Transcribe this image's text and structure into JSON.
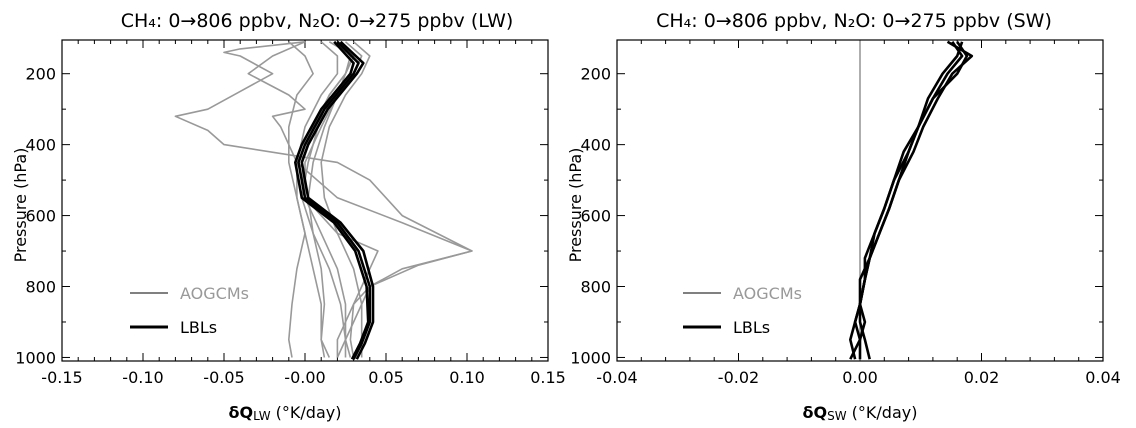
{
  "chart_data": [
    {
      "type": "line",
      "title": "CH₄: 0→806 ppbv, N₂O: 0→275 ppbv (LW)",
      "xlabel": "δQₗᵤ (°K/day)",
      "xlabel_main": "δQ",
      "xlabel_sub": "LW",
      "xlabel_unit": " (°K/day)",
      "ylabel": "Pressure (hPa)",
      "xlim": [
        -0.15,
        0.15
      ],
      "ylim": [
        1010,
        105
      ],
      "xticks": [
        "-0.15",
        "-0.10",
        "-0.05",
        "-0.00",
        "0.05",
        "0.10",
        "0.15"
      ],
      "yticks": [
        "200",
        "400",
        "600",
        "800",
        "1000"
      ],
      "legend": [
        {
          "label": "AOGCMs",
          "color": "#999999"
        },
        {
          "label": "LBLs",
          "color": "#000000"
        }
      ],
      "legend_position": "bottom-left",
      "series": [
        {
          "group": "AOGCMs",
          "color": "#999999",
          "points": [
            [
              -0.01,
              110
            ],
            [
              0.0,
              150
            ],
            [
              0.005,
              200
            ],
            [
              -0.005,
              260
            ],
            [
              -0.01,
              350
            ],
            [
              -0.01,
              450
            ],
            [
              -0.005,
              550
            ],
            [
              0.0,
              650
            ],
            [
              -0.005,
              750
            ],
            [
              -0.008,
              850
            ],
            [
              -0.01,
              950
            ],
            [
              -0.008,
              1000
            ]
          ]
        },
        {
          "group": "AOGCMs",
          "color": "#999999",
          "points": [
            [
              0.02,
              110
            ],
            [
              0.03,
              150
            ],
            [
              0.025,
              200
            ],
            [
              0.02,
              260
            ],
            [
              0.012,
              350
            ],
            [
              0.005,
              450
            ],
            [
              0.002,
              550
            ],
            [
              0.005,
              650
            ],
            [
              0.01,
              750
            ],
            [
              0.012,
              850
            ],
            [
              0.01,
              950
            ],
            [
              0.012,
              1000
            ]
          ]
        },
        {
          "group": "AOGCMs",
          "color": "#999999",
          "points": [
            [
              0.025,
              110
            ],
            [
              0.035,
              150
            ],
            [
              0.03,
              200
            ],
            [
              0.02,
              260
            ],
            [
              0.01,
              350
            ],
            [
              0.0,
              450
            ],
            [
              0.0,
              550
            ],
            [
              0.01,
              650
            ],
            [
              0.02,
              750
            ],
            [
              0.025,
              850
            ],
            [
              0.025,
              950
            ],
            [
              0.025,
              1000
            ]
          ]
        },
        {
          "group": "AOGCMs",
          "color": "#999999",
          "points": [
            [
              0.02,
              110
            ],
            [
              0.028,
              150
            ],
            [
              0.025,
              200
            ],
            [
              0.015,
              260
            ],
            [
              0.005,
              350
            ],
            [
              -0.002,
              450
            ],
            [
              0.0,
              550
            ],
            [
              0.02,
              650
            ],
            [
              0.045,
              700
            ],
            [
              0.04,
              750
            ],
            [
              0.035,
              800
            ],
            [
              0.03,
              850
            ],
            [
              0.028,
              950
            ],
            [
              0.03,
              1000
            ]
          ]
        },
        {
          "group": "AOGCMs",
          "color": "#999999",
          "points": [
            [
              0.03,
              110
            ],
            [
              0.04,
              150
            ],
            [
              0.035,
              200
            ],
            [
              0.025,
              260
            ],
            [
              0.015,
              350
            ],
            [
              0.01,
              450
            ],
            [
              0.012,
              550
            ],
            [
              0.02,
              650
            ],
            [
              0.03,
              750
            ],
            [
              0.035,
              850
            ],
            [
              0.035,
              950
            ],
            [
              0.035,
              1000
            ]
          ]
        },
        {
          "group": "AOGCMs",
          "color": "#999999",
          "points": [
            [
              0.015,
              110
            ],
            [
              0.03,
              150
            ],
            [
              0.025,
              200
            ],
            [
              0.015,
              260
            ],
            [
              0.008,
              350
            ],
            [
              0.002,
              450
            ],
            [
              -0.002,
              550
            ],
            [
              0.005,
              650
            ],
            [
              0.015,
              750
            ],
            [
              0.022,
              850
            ],
            [
              0.025,
              950
            ],
            [
              0.028,
              1000
            ]
          ]
        },
        {
          "group": "AOGCMs",
          "color": "#999999",
          "points": [
            [
              0.01,
              110
            ],
            [
              0.02,
              150
            ],
            [
              0.02,
              200
            ],
            [
              0.01,
              260
            ],
            [
              0.0,
              350
            ],
            [
              -0.005,
              450
            ],
            [
              -0.005,
              550
            ],
            [
              0.0,
              650
            ],
            [
              0.005,
              750
            ],
            [
              0.01,
              850
            ],
            [
              0.01,
              950
            ],
            [
              0.015,
              1000
            ]
          ]
        },
        {
          "group": "AOGCMs",
          "color": "#999999",
          "points": [
            [
              0.0,
              110
            ],
            [
              -0.04,
              130
            ],
            [
              -0.05,
              140
            ],
            [
              -0.04,
              150
            ],
            [
              -0.02,
              200
            ],
            [
              -0.04,
              250
            ],
            [
              -0.06,
              300
            ],
            [
              -0.08,
              320
            ],
            [
              -0.06,
              360
            ],
            [
              -0.05,
              400
            ],
            [
              0.02,
              450
            ],
            [
              0.04,
              500
            ],
            [
              0.06,
              600
            ],
            [
              0.103,
              700
            ],
            [
              0.06,
              750
            ],
            [
              0.04,
              800
            ],
            [
              0.03,
              850
            ],
            [
              0.02,
              950
            ],
            [
              0.02,
              1000
            ]
          ]
        },
        {
          "group": "AOGCMs",
          "color": "#999999",
          "points": [
            [
              0.0,
              110
            ],
            [
              -0.02,
              150
            ],
            [
              -0.035,
              200
            ],
            [
              -0.01,
              260
            ],
            [
              0.0,
              300
            ],
            [
              -0.02,
              320
            ],
            [
              -0.015,
              350
            ],
            [
              -0.005,
              450
            ],
            [
              0.02,
              550
            ],
            [
              0.06,
              620
            ],
            [
              0.103,
              700
            ],
            [
              0.07,
              740
            ],
            [
              0.04,
              800
            ],
            [
              0.03,
              900
            ],
            [
              0.02,
              1000
            ]
          ]
        },
        {
          "group": "LBLs",
          "color": "#000000",
          "points": [
            [
              0.02,
              110
            ],
            [
              0.033,
              170
            ],
            [
              0.03,
              200
            ],
            [
              0.012,
              300
            ],
            [
              0.0,
              400
            ],
            [
              -0.004,
              450
            ],
            [
              0.0,
              550
            ],
            [
              0.02,
              620
            ],
            [
              0.033,
              700
            ],
            [
              0.04,
              800
            ],
            [
              0.04,
              900
            ],
            [
              0.035,
              960
            ],
            [
              0.03,
              1005
            ]
          ]
        },
        {
          "group": "LBLs",
          "color": "#000000",
          "points": [
            [
              0.022,
              110
            ],
            [
              0.036,
              170
            ],
            [
              0.032,
              200
            ],
            [
              0.014,
              300
            ],
            [
              0.002,
              400
            ],
            [
              -0.002,
              450
            ],
            [
              0.002,
              550
            ],
            [
              0.022,
              620
            ],
            [
              0.036,
              700
            ],
            [
              0.042,
              800
            ],
            [
              0.042,
              900
            ],
            [
              0.037,
              960
            ],
            [
              0.032,
              1005
            ]
          ]
        },
        {
          "group": "LBLs",
          "color": "#000000",
          "points": [
            [
              0.018,
              110
            ],
            [
              0.03,
              170
            ],
            [
              0.028,
              200
            ],
            [
              0.01,
              300
            ],
            [
              -0.002,
              400
            ],
            [
              -0.006,
              450
            ],
            [
              -0.002,
              550
            ],
            [
              0.018,
              620
            ],
            [
              0.031,
              700
            ],
            [
              0.038,
              800
            ],
            [
              0.039,
              900
            ],
            [
              0.034,
              960
            ],
            [
              0.029,
              1005
            ]
          ]
        }
      ]
    },
    {
      "type": "line",
      "title": "CH₄: 0→806 ppbv, N₂O: 0→275 ppbv (SW)",
      "xlabel": "δQₛᵤ (°K/day)",
      "xlabel_main": "δQ",
      "xlabel_sub": "SW",
      "xlabel_unit": " (°K/day)",
      "ylabel": "Pressure (hPa)",
      "xlim": [
        -0.05,
        0.05
      ],
      "ylim": [
        1010,
        105
      ],
      "xticks": [
        "-0.04",
        "-0.02",
        "0.00",
        "0.02",
        "0.04"
      ],
      "yticks": [
        "200",
        "400",
        "600",
        "800",
        "1000"
      ],
      "legend": [
        {
          "label": "AOGCMs",
          "color": "#999999"
        },
        {
          "label": "LBLs",
          "color": "#000000"
        }
      ],
      "legend_position": "bottom-left",
      "series": [
        {
          "group": "AOGCMs",
          "color": "#999999",
          "points": [
            [
              0.0,
              105
            ],
            [
              0.0,
              1010
            ]
          ]
        },
        {
          "group": "LBLs",
          "color": "#000000",
          "points": [
            [
              0.019,
              110
            ],
            [
              0.021,
              150
            ],
            [
              0.018,
              200
            ],
            [
              0.015,
              270
            ],
            [
              0.012,
              350
            ],
            [
              0.01,
              420
            ],
            [
              0.008,
              500
            ],
            [
              0.006,
              580
            ],
            [
              0.004,
              650
            ],
            [
              0.002,
              720
            ],
            [
              0.001,
              780
            ],
            [
              0.0,
              850
            ],
            [
              -0.001,
              900
            ],
            [
              0.0,
              950
            ],
            [
              -0.002,
              1005
            ]
          ]
        },
        {
          "group": "LBLs",
          "color": "#000000",
          "points": [
            [
              0.021,
              110
            ],
            [
              0.02,
              150
            ],
            [
              0.017,
              200
            ],
            [
              0.014,
              270
            ],
            [
              0.012,
              350
            ],
            [
              0.01,
              420
            ],
            [
              0.007,
              500
            ],
            [
              0.005,
              580
            ],
            [
              0.003,
              650
            ],
            [
              0.002,
              720
            ],
            [
              0.0,
              780
            ],
            [
              0.0,
              850
            ],
            [
              0.001,
              900
            ],
            [
              0.0,
              950
            ],
            [
              0.0,
              1005
            ]
          ]
        },
        {
          "group": "LBLs",
          "color": "#000000",
          "points": [
            [
              0.018,
              110
            ],
            [
              0.023,
              150
            ],
            [
              0.019,
              200
            ],
            [
              0.016,
              270
            ],
            [
              0.013,
              350
            ],
            [
              0.011,
              420
            ],
            [
              0.008,
              500
            ],
            [
              0.006,
              580
            ],
            [
              0.004,
              650
            ],
            [
              0.002,
              720
            ],
            [
              0.001,
              780
            ],
            [
              0.0,
              850
            ],
            [
              -0.001,
              900
            ],
            [
              -0.002,
              950
            ],
            [
              -0.001,
              1005
            ]
          ]
        },
        {
          "group": "LBLs",
          "color": "#000000",
          "points": [
            [
              0.02,
              110
            ],
            [
              0.022,
              150
            ],
            [
              0.02,
              200
            ],
            [
              0.015,
              270
            ],
            [
              0.012,
              350
            ],
            [
              0.009,
              420
            ],
            [
              0.007,
              500
            ],
            [
              0.005,
              580
            ],
            [
              0.003,
              650
            ],
            [
              0.001,
              720
            ],
            [
              0.001,
              780
            ],
            [
              0.0,
              850
            ],
            [
              0.0,
              900
            ],
            [
              0.001,
              950
            ],
            [
              0.002,
              1005
            ]
          ]
        }
      ]
    }
  ]
}
